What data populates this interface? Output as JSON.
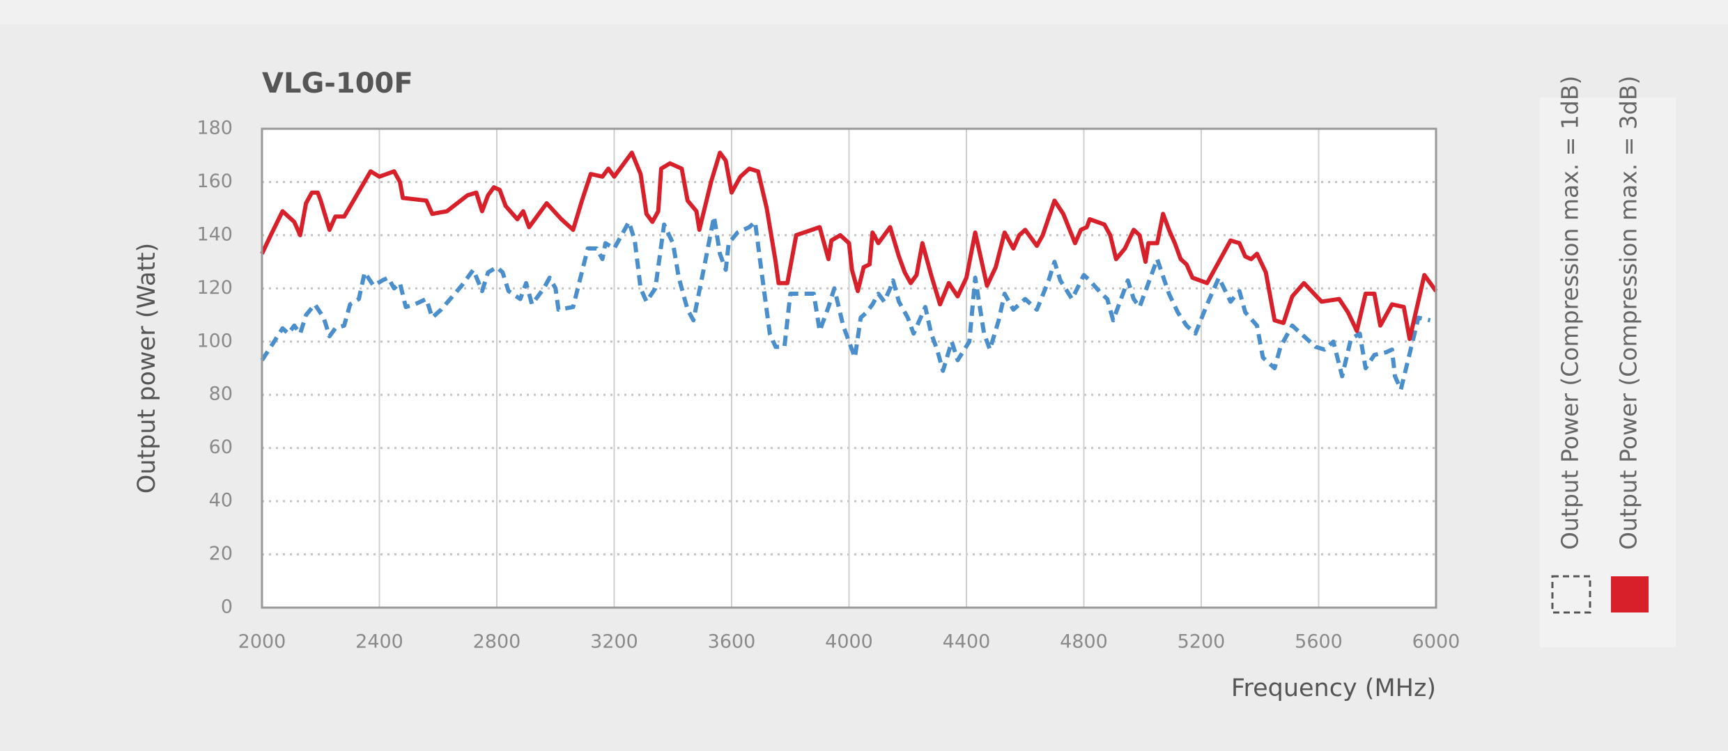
{
  "chart_data": {
    "type": "line",
    "title": "VLG-100F",
    "x_label": "Frequency (MHz)",
    "y_label": "Output power (Watt)",
    "xlim": [
      2000,
      6000
    ],
    "xticks": [
      2000,
      2400,
      2800,
      3200,
      3600,
      4000,
      4400,
      4800,
      5200,
      5600,
      6000
    ],
    "ylim": [
      0,
      180
    ],
    "yticks": [
      0,
      20,
      40,
      60,
      80,
      100,
      120,
      140,
      160,
      180
    ],
    "grid": true,
    "series": [
      {
        "name": "Output Power (Compression max. = 1dB)",
        "color": "#4a8fcb",
        "line_style": "dashed",
        "x": [
          2000,
          2030,
          2070,
          2090,
          2110,
          2130,
          2150,
          2180,
          2210,
          2230,
          2250,
          2280,
          2300,
          2330,
          2350,
          2380,
          2410,
          2430,
          2450,
          2470,
          2490,
          2520,
          2560,
          2580,
          2610,
          2680,
          2720,
          2750,
          2770,
          2800,
          2820,
          2840,
          2880,
          2900,
          2920,
          2960,
          2980,
          3000,
          3010,
          3060,
          3110,
          3140,
          3160,
          3170,
          3200,
          3250,
          3270,
          3290,
          3310,
          3340,
          3370,
          3400,
          3420,
          3450,
          3470,
          3510,
          3540,
          3560,
          3580,
          3590,
          3620,
          3660,
          3680,
          3700,
          3730,
          3750,
          3780,
          3800,
          3830,
          3880,
          3900,
          3930,
          3950,
          3980,
          4020,
          4040,
          4060,
          4080,
          4100,
          4120,
          4140,
          4150,
          4170,
          4200,
          4220,
          4260,
          4280,
          4300,
          4320,
          4350,
          4370,
          4410,
          4430,
          4460,
          4480,
          4510,
          4530,
          4560,
          4600,
          4640,
          4680,
          4700,
          4720,
          4760,
          4800,
          4820,
          4860,
          4880,
          4900,
          4920,
          4950,
          4970,
          4990,
          5020,
          5050,
          5090,
          5120,
          5150,
          5180,
          5220,
          5260,
          5300,
          5330,
          5350,
          5390,
          5410,
          5450,
          5470,
          5510,
          5530,
          5590,
          5620,
          5650,
          5680,
          5710,
          5740,
          5760,
          5790,
          5830,
          5850,
          5860,
          5880,
          5920,
          5940,
          5980
        ],
        "values": [
          93,
          98,
          105,
          103,
          106,
          103,
          110,
          114,
          109,
          102,
          105,
          106,
          114,
          116,
          126,
          121,
          123,
          124,
          120,
          122,
          113,
          114,
          116,
          109,
          112,
          121,
          127,
          119,
          126,
          128,
          126,
          119,
          116,
          122,
          114,
          120,
          124,
          120,
          112,
          113,
          135,
          135,
          131,
          137,
          135,
          145,
          138,
          120,
          115,
          120,
          144,
          137,
          124,
          112,
          108,
          130,
          147,
          133,
          127,
          137,
          141,
          143,
          145,
          128,
          103,
          98,
          98,
          118,
          118,
          118,
          104,
          113,
          120,
          106,
          94,
          109,
          111,
          114,
          118,
          115,
          120,
          123,
          115,
          109,
          103,
          113,
          103,
          97,
          89,
          100,
          93,
          100,
          124,
          103,
          97,
          108,
          118,
          112,
          116,
          112,
          123,
          130,
          123,
          116,
          125,
          123,
          118,
          116,
          108,
          114,
          123,
          116,
          113,
          122,
          131,
          118,
          111,
          106,
          103,
          114,
          124,
          115,
          119,
          111,
          106,
          94,
          90,
          98,
          106,
          104,
          98,
          97,
          100,
          87,
          101,
          103,
          90,
          95,
          96,
          97,
          87,
          82,
          100,
          109,
          108
        ]
      },
      {
        "name": "Output Power (Compression max. = 3dB)",
        "color": "#d7202a",
        "line_style": "solid",
        "x": [
          2000,
          2030,
          2070,
          2110,
          2130,
          2150,
          2170,
          2190,
          2200,
          2230,
          2250,
          2280,
          2370,
          2400,
          2450,
          2470,
          2480,
          2560,
          2580,
          2630,
          2700,
          2730,
          2750,
          2770,
          2790,
          2810,
          2830,
          2870,
          2890,
          2910,
          2970,
          3020,
          3060,
          3090,
          3120,
          3160,
          3180,
          3200,
          3260,
          3290,
          3310,
          3330,
          3350,
          3360,
          3390,
          3430,
          3450,
          3480,
          3490,
          3530,
          3560,
          3580,
          3600,
          3630,
          3660,
          3690,
          3720,
          3750,
          3760,
          3790,
          3820,
          3900,
          3930,
          3940,
          3970,
          4000,
          4010,
          4030,
          4050,
          4070,
          4080,
          4100,
          4140,
          4170,
          4190,
          4210,
          4230,
          4250,
          4280,
          4310,
          4340,
          4370,
          4400,
          4430,
          4450,
          4470,
          4500,
          4530,
          4560,
          4580,
          4600,
          4640,
          4660,
          4700,
          4730,
          4770,
          4790,
          4810,
          4820,
          4870,
          4890,
          4910,
          4940,
          4970,
          4990,
          5010,
          5020,
          5050,
          5070,
          5090,
          5110,
          5130,
          5150,
          5170,
          5220,
          5260,
          5300,
          5330,
          5350,
          5370,
          5390,
          5420,
          5450,
          5480,
          5510,
          5550,
          5610,
          5670,
          5700,
          5730,
          5760,
          5790,
          5810,
          5850,
          5890,
          5910,
          5960,
          6000
        ],
        "values": [
          133,
          140,
          149,
          145,
          140,
          152,
          156,
          156,
          153,
          142,
          147,
          147,
          164,
          162,
          164,
          160,
          154,
          153,
          148,
          149,
          155,
          156,
          149,
          155,
          158,
          157,
          151,
          146,
          149,
          143,
          152,
          146,
          142,
          153,
          163,
          162,
          165,
          162,
          171,
          163,
          148,
          145,
          149,
          165,
          167,
          165,
          153,
          149,
          142,
          160,
          171,
          168,
          156,
          162,
          165,
          164,
          150,
          130,
          122,
          122,
          140,
          143,
          131,
          138,
          140,
          137,
          127,
          119,
          128,
          129,
          141,
          137,
          143,
          132,
          126,
          122,
          125,
          137,
          125,
          114,
          122,
          117,
          124,
          141,
          131,
          121,
          128,
          141,
          135,
          140,
          142,
          136,
          140,
          153,
          148,
          137,
          142,
          143,
          146,
          144,
          140,
          131,
          135,
          142,
          140,
          130,
          137,
          137,
          148,
          142,
          137,
          131,
          129,
          124,
          122,
          130,
          138,
          137,
          132,
          131,
          133,
          126,
          108,
          107,
          117,
          122,
          115,
          116,
          111,
          104,
          118,
          118,
          106,
          114,
          113,
          101,
          125,
          119
        ]
      }
    ]
  }
}
